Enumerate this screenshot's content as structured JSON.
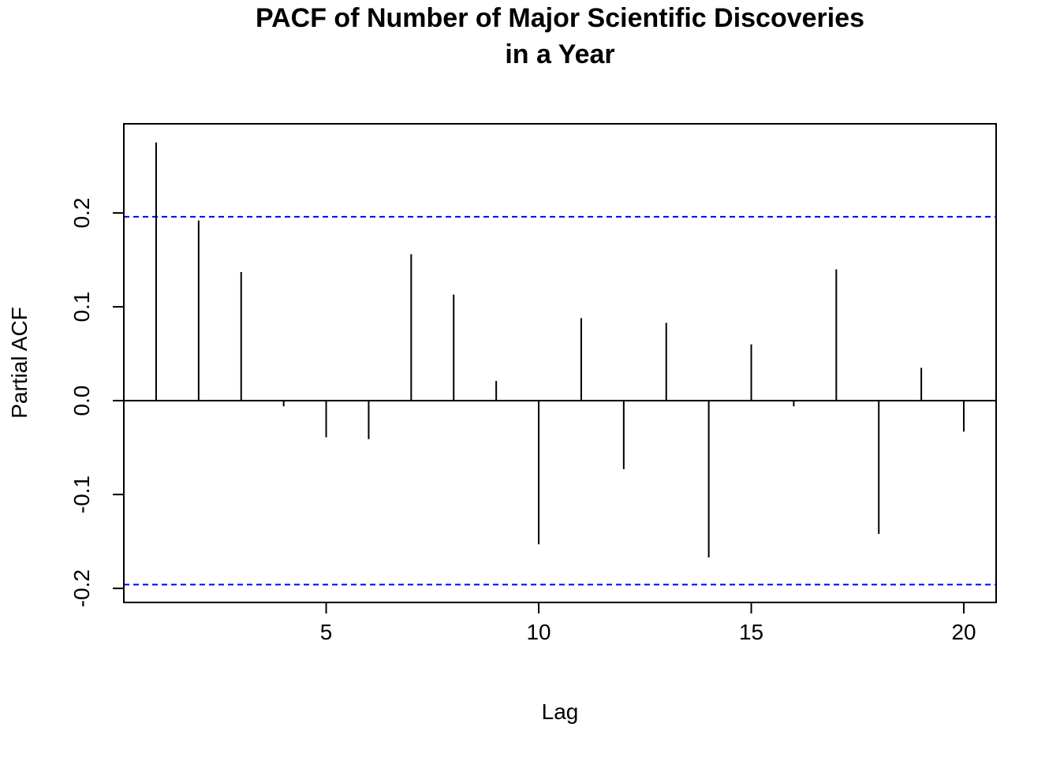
{
  "chart_data": {
    "type": "bar",
    "title_lines": [
      "PACF of Number of Major Scientific Discoveries",
      "in a Year"
    ],
    "xlabel": "Lag",
    "ylabel": "Partial ACF",
    "x": [
      1,
      2,
      3,
      4,
      5,
      6,
      7,
      8,
      9,
      10,
      11,
      12,
      13,
      14,
      15,
      16,
      17,
      18,
      19,
      20
    ],
    "values": [
      0.275,
      0.192,
      0.137,
      -0.006,
      -0.039,
      -0.041,
      0.156,
      0.113,
      0.021,
      -0.153,
      0.088,
      -0.073,
      0.083,
      -0.167,
      0.06,
      -0.006,
      0.14,
      -0.142,
      0.035,
      -0.033
    ],
    "xlim": [
      0.24,
      20.76
    ],
    "ylim": [
      -0.215,
      0.295
    ],
    "x_ticks": [
      5,
      10,
      15,
      20
    ],
    "x_tick_labels": [
      "5",
      "10",
      "15",
      "20"
    ],
    "y_ticks": [
      -0.2,
      -0.1,
      0.0,
      0.1,
      0.2
    ],
    "y_tick_labels": [
      "-0.2",
      "-0.1",
      "0.0",
      "0.1",
      "0.2"
    ],
    "confidence_bounds": [
      0.196,
      -0.196
    ],
    "bound_color": "#0000ff",
    "bar_color": "#000000",
    "grid": false,
    "legend": "none"
  }
}
